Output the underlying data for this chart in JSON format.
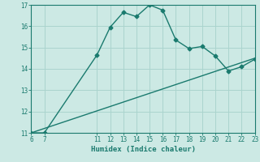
{
  "xlabel": "Humidex (Indice chaleur)",
  "bg_color": "#cce9e4",
  "line_color": "#1a7a6e",
  "grid_color": "#aad4ce",
  "curve_x": [
    6,
    7,
    11,
    12,
    13,
    14,
    15,
    16,
    17,
    18,
    19,
    20,
    21,
    22,
    23
  ],
  "curve_y": [
    11.0,
    11.0,
    14.65,
    15.95,
    16.65,
    16.45,
    17.0,
    16.75,
    15.35,
    14.95,
    15.05,
    14.6,
    13.9,
    14.1,
    14.45
  ],
  "line_x": [
    6,
    23
  ],
  "line_y": [
    11.0,
    14.5
  ],
  "xmin": 6,
  "xmax": 23,
  "ymin": 11,
  "ymax": 17,
  "xticks": [
    6,
    7,
    11,
    12,
    13,
    14,
    15,
    16,
    17,
    18,
    19,
    20,
    21,
    22,
    23
  ],
  "yticks": [
    11,
    12,
    13,
    14,
    15,
    16,
    17
  ],
  "marker_size": 2.5,
  "linewidth": 1.0
}
